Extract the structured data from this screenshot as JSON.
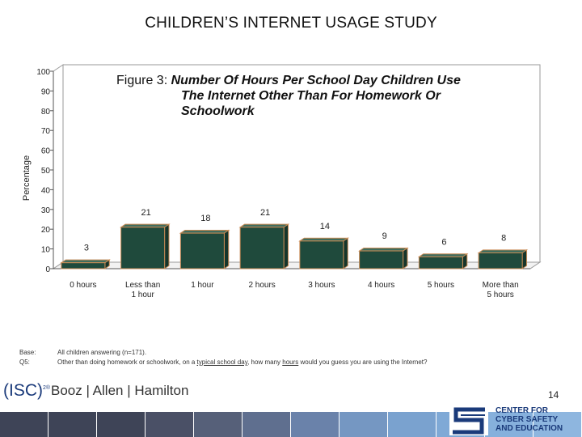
{
  "header": {
    "title": "CHILDREN’S INTERNET USAGE STUDY"
  },
  "chart_data": {
    "type": "bar",
    "title_lead": "Figure 3: ",
    "title_lines": [
      "Number Of Hours Per School Day Children Use",
      "The Internet Other Than For Homework Or",
      "Schoolwork"
    ],
    "ylabel": "Percentage",
    "ylim": [
      0,
      100
    ],
    "yticks": [
      0,
      10,
      20,
      30,
      40,
      50,
      60,
      70,
      80,
      90,
      100
    ],
    "categories": [
      "0 hours",
      "Less than 1 hour",
      "1 hour",
      "2 hours",
      "3 hours",
      "4 hours",
      "5 hours",
      "More than 5 hours"
    ],
    "values": [
      3,
      21,
      18,
      21,
      14,
      9,
      6,
      8
    ],
    "bar_color": "#1f4a3c",
    "grid": false
  },
  "notes": {
    "base_label": "Base:",
    "base_text": "All children answering (n=171).",
    "q_label": "Q5:",
    "q_pre": "Other than doing homework or schoolwork, on a ",
    "q_u1": "typical school day",
    "q_mid": ", how many ",
    "q_u2": "hours",
    "q_post": " would you guess you are using the Internet?"
  },
  "footer": {
    "page_number": "14",
    "brand_isc": "(ISC)",
    "brand_isc_sup": "2®",
    "brand_booz": "Booz | Allen | Hamilton",
    "ccse_lines": [
      "CENTER FOR",
      "CYBER SAFETY",
      "AND EDUCATION"
    ],
    "band_colors": [
      "#3e4457",
      "#3e4457",
      "#3e4457",
      "#4a5066",
      "#566079",
      "#5f6f8f",
      "#6a82aa",
      "#7597c2",
      "#7aa2cf",
      "#7fa9d6",
      "#86b0dc",
      "#8eb6df"
    ]
  }
}
